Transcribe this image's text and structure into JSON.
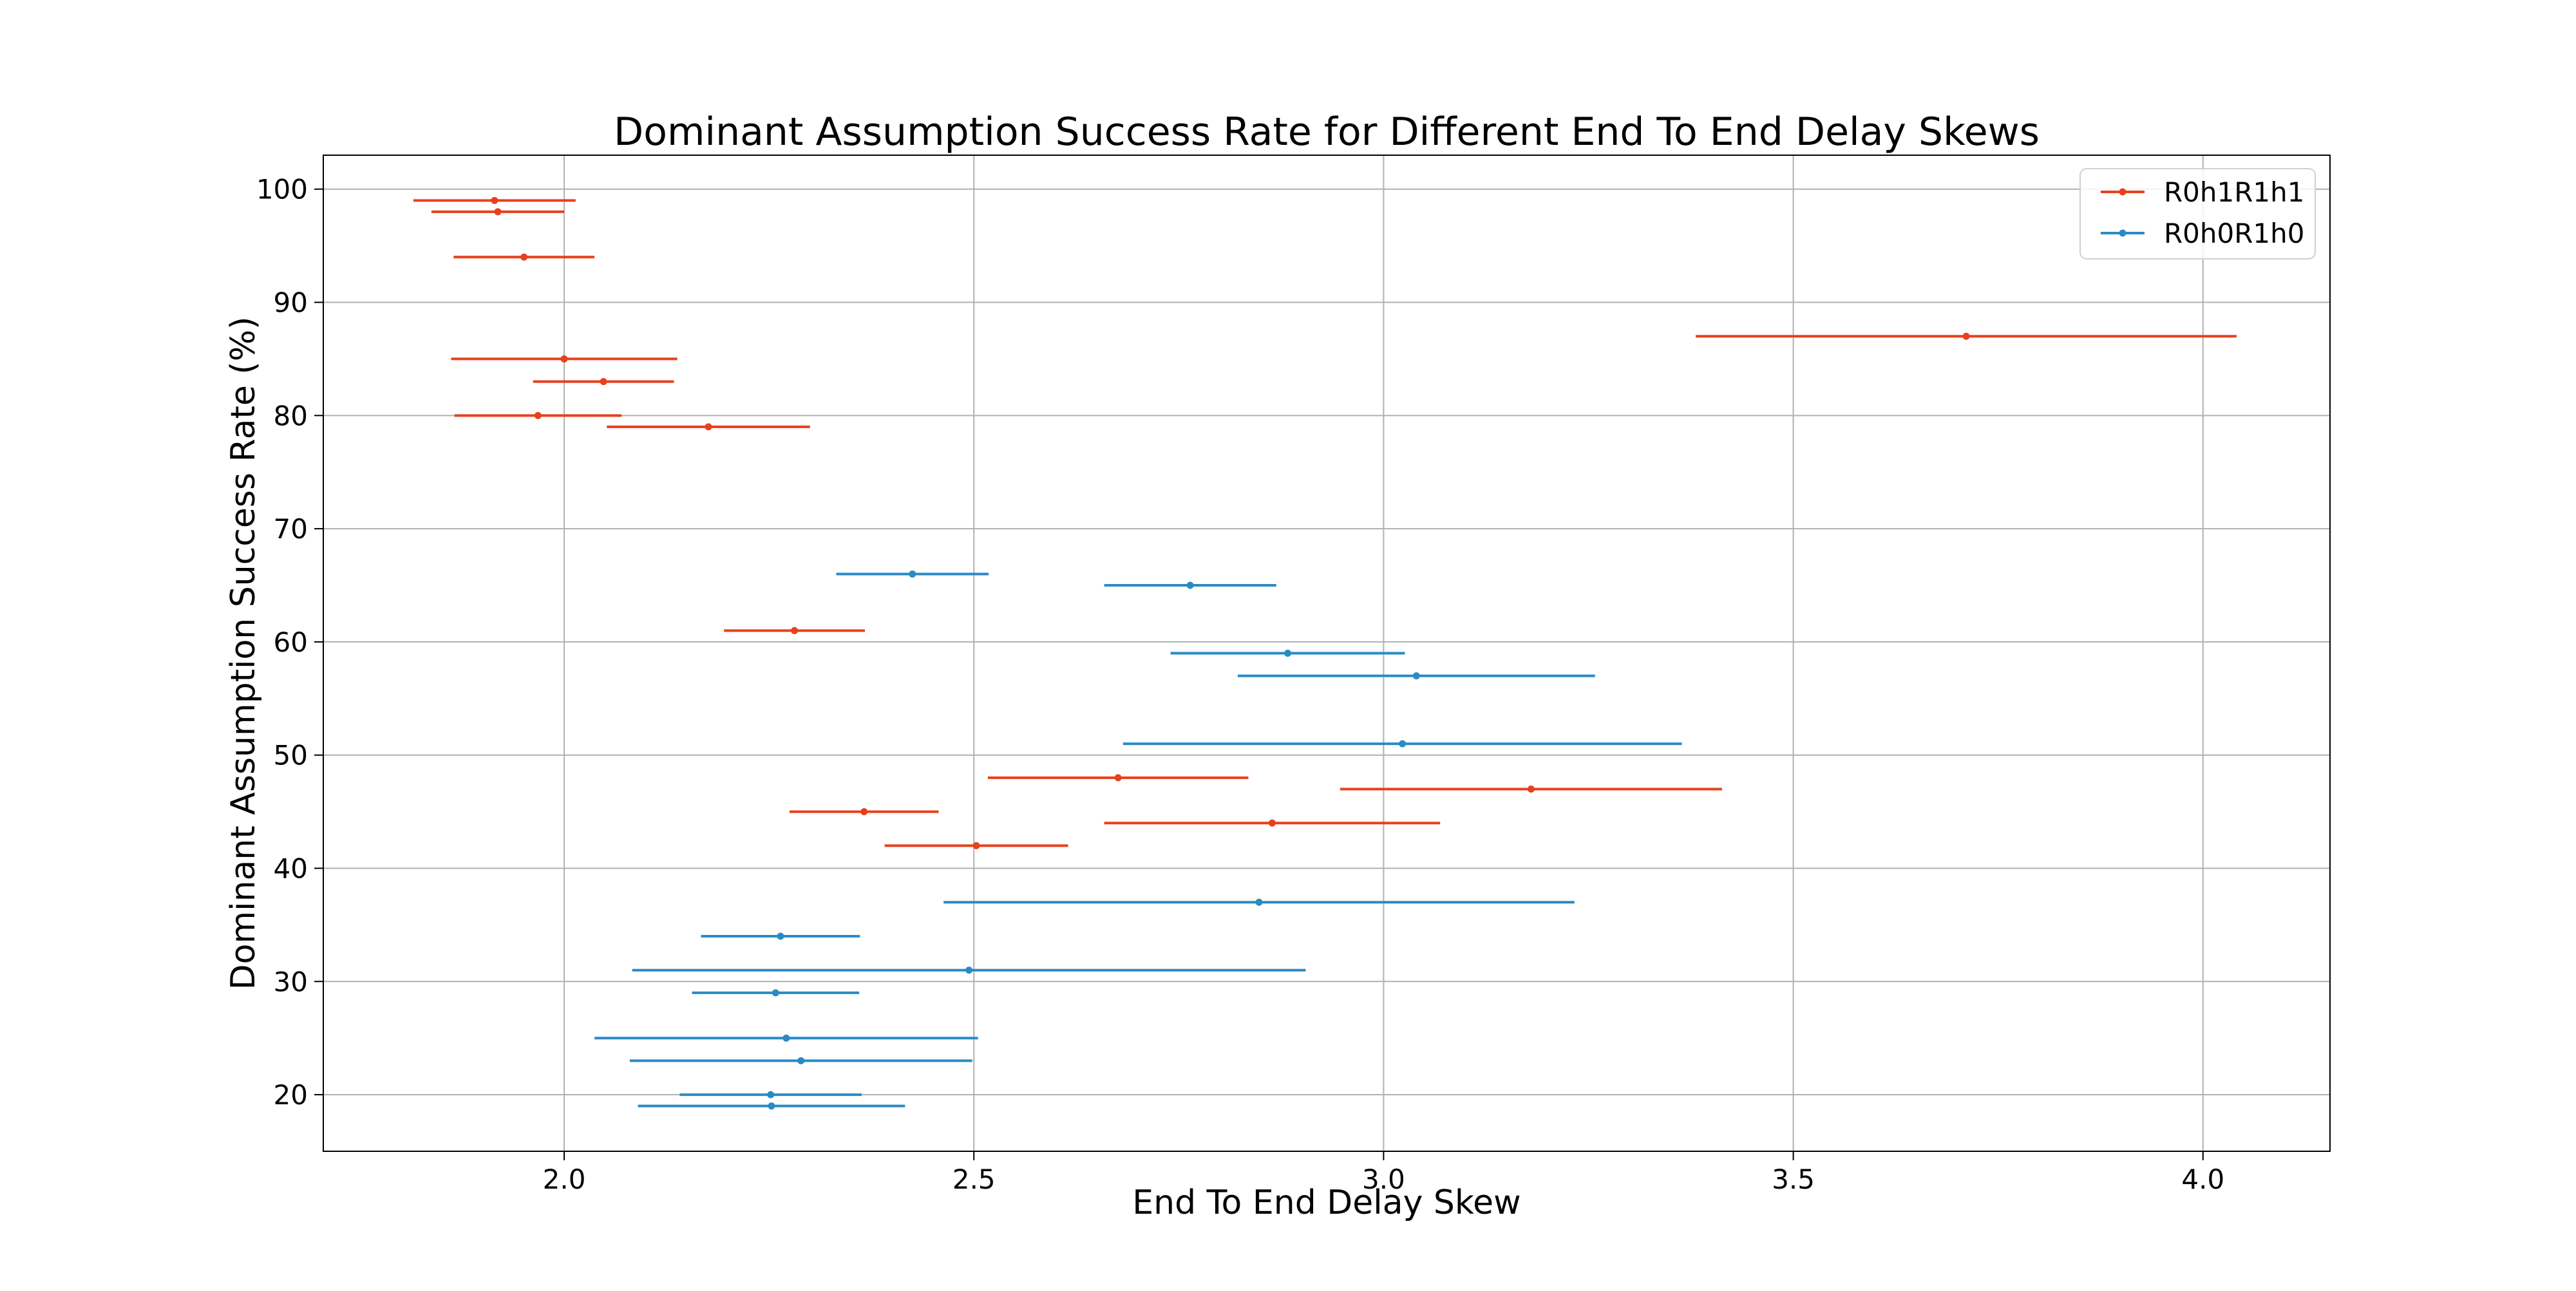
{
  "chart_data": {
    "type": "scatter",
    "title": "Dominant Assumption Success Rate for Different End To End Delay Skews",
    "xlabel": "End To End Delay Skew",
    "ylabel": "Dominant Assumption Success Rate (%)",
    "xlim": [
      1.706,
      4.155
    ],
    "ylim": [
      15.0,
      103.0
    ],
    "x_ticks": [
      2.0,
      2.5,
      3.0,
      3.5,
      4.0
    ],
    "x_tick_labels": [
      "2.0",
      "2.5",
      "3.0",
      "3.5",
      "4.0"
    ],
    "y_ticks": [
      20,
      30,
      40,
      50,
      60,
      70,
      80,
      90,
      100
    ],
    "y_tick_labels": [
      "20",
      "30",
      "40",
      "50",
      "60",
      "70",
      "80",
      "90",
      "100"
    ],
    "grid": true,
    "legend_position": "top-right",
    "series": [
      {
        "name": "R0h1R1h1",
        "color": "#e8401c",
        "points": [
          {
            "x": 1.915,
            "y": 99,
            "xerr": 0.099
          },
          {
            "x": 1.919,
            "y": 98,
            "xerr": 0.081
          },
          {
            "x": 1.951,
            "y": 94,
            "xerr": 0.086
          },
          {
            "x": 2.0,
            "y": 85,
            "xerr": 0.138
          },
          {
            "x": 2.048,
            "y": 83,
            "xerr": 0.086
          },
          {
            "x": 1.968,
            "y": 80,
            "xerr": 0.102
          },
          {
            "x": 2.176,
            "y": 79,
            "xerr": 0.124
          },
          {
            "x": 3.711,
            "y": 87,
            "xerr": 0.33
          },
          {
            "x": 2.281,
            "y": 61,
            "xerr": 0.086
          },
          {
            "x": 2.366,
            "y": 45,
            "xerr": 0.091
          },
          {
            "x": 2.676,
            "y": 48,
            "xerr": 0.159
          },
          {
            "x": 2.503,
            "y": 42,
            "xerr": 0.112
          },
          {
            "x": 2.864,
            "y": 44,
            "xerr": 0.205
          },
          {
            "x": 3.18,
            "y": 47,
            "xerr": 0.233
          }
        ]
      },
      {
        "name": "R0h0R1h0",
        "color": "#2a8bc4",
        "points": [
          {
            "x": 2.425,
            "y": 66,
            "xerr": 0.093
          },
          {
            "x": 2.764,
            "y": 65,
            "xerr": 0.105
          },
          {
            "x": 2.883,
            "y": 59,
            "xerr": 0.143
          },
          {
            "x": 3.04,
            "y": 57,
            "xerr": 0.218
          },
          {
            "x": 3.023,
            "y": 51,
            "xerr": 0.341
          },
          {
            "x": 2.848,
            "y": 37,
            "xerr": 0.385
          },
          {
            "x": 2.264,
            "y": 34,
            "xerr": 0.097
          },
          {
            "x": 2.494,
            "y": 31,
            "xerr": 0.411
          },
          {
            "x": 2.258,
            "y": 29,
            "xerr": 0.102
          },
          {
            "x": 2.271,
            "y": 25,
            "xerr": 0.234
          },
          {
            "x": 2.289,
            "y": 23,
            "xerr": 0.209
          },
          {
            "x": 2.252,
            "y": 20,
            "xerr": 0.111
          },
          {
            "x": 2.253,
            "y": 19,
            "xerr": 0.163
          }
        ]
      }
    ]
  }
}
